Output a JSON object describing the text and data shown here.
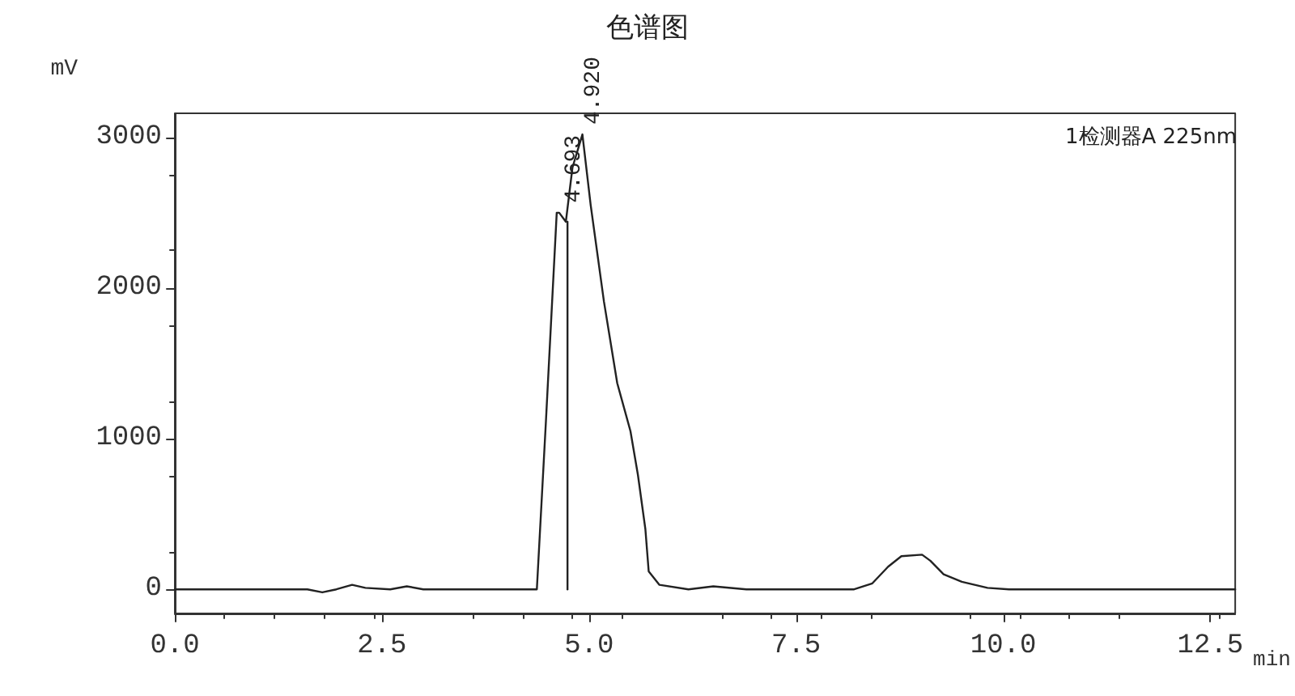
{
  "chart_data": {
    "type": "line",
    "title": "色谱图",
    "xlabel": "min",
    "ylabel": "mV",
    "xlim": [
      0,
      12.8
    ],
    "ylim": [
      -160,
      3160
    ],
    "xticks": [
      {
        "value": 0,
        "label": "0.0"
      },
      {
        "value": 2.5,
        "label": "2.5"
      },
      {
        "value": 5,
        "label": "5.0"
      },
      {
        "value": 7.5,
        "label": "7.5"
      },
      {
        "value": 10,
        "label": "10.0"
      },
      {
        "value": 12.5,
        "label": "12.5"
      }
    ],
    "yticks": [
      0,
      1000,
      2000,
      3000
    ],
    "grid": false,
    "legend": "top right",
    "marker": "none",
    "line_style": "solid",
    "series": [
      {
        "name": "1检测器A 225nm",
        "color": "#222222",
        "x": [
          0,
          1.6,
          1.78,
          1.95,
          2.14,
          2.3,
          2.6,
          2.8,
          3.0,
          4.0,
          4.37,
          4.48,
          4.61,
          4.64,
          4.72,
          4.8,
          4.92,
          5.02,
          5.18,
          5.34,
          5.5,
          5.59,
          5.68,
          5.72,
          5.85,
          6.2,
          6.5,
          6.9,
          8.2,
          8.42,
          8.61,
          8.77,
          9.02,
          9.12,
          9.28,
          9.5,
          9.81,
          10.07,
          12.8
        ],
        "values": [
          0,
          0,
          -20,
          0,
          30,
          10,
          0,
          20,
          0,
          0,
          0,
          1120,
          2500,
          2500,
          2440,
          2800,
          3020,
          2550,
          1910,
          1370,
          1050,
          760,
          400,
          120,
          30,
          0,
          20,
          0,
          0,
          40,
          150,
          220,
          230,
          190,
          100,
          50,
          10,
          0,
          0
        ]
      },
      {
        "color": "#222222",
        "x": [
          4.74,
          4.74
        ],
        "values": [
          0,
          2440
        ]
      }
    ],
    "annotations": [
      {
        "text": "4.693",
        "x": 4.693,
        "y": 2500
      },
      {
        "text": "4.920",
        "x": 4.92,
        "y": 3020
      }
    ]
  }
}
